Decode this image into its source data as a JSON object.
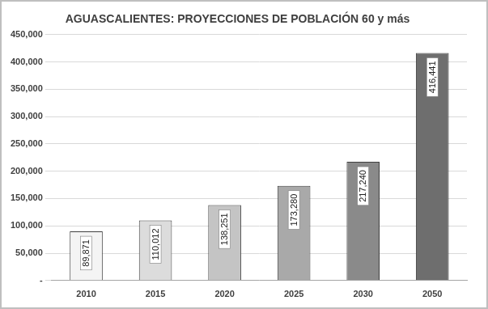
{
  "chart_data": {
    "type": "bar",
    "title": "AGUASCALIENTES: PROYECCIONES DE POBLACIÓN 60 y más",
    "categories": [
      "2010",
      "2015",
      "2020",
      "2025",
      "2030",
      "2050"
    ],
    "values": [
      89871,
      110012,
      138251,
      173280,
      217240,
      416441
    ],
    "value_labels": [
      "89,871",
      "110,012",
      "138,251",
      "173,280",
      "217,240",
      "416,441"
    ],
    "colors": [
      "#f4f4f4",
      "#dcdcdc",
      "#c4c4c4",
      "#a9a9a9",
      "#8a8a8a",
      "#6e6e6e"
    ],
    "ylim": [
      0,
      450000
    ],
    "yticks": [
      {
        "value": 0,
        "label": "-"
      },
      {
        "value": 50000,
        "label": "50,000"
      },
      {
        "value": 100000,
        "label": "100,000"
      },
      {
        "value": 150000,
        "label": "150,000"
      },
      {
        "value": 200000,
        "label": "200,000"
      },
      {
        "value": 250000,
        "label": "250,000"
      },
      {
        "value": 300000,
        "label": "300,000"
      },
      {
        "value": 350000,
        "label": "350,000"
      },
      {
        "value": 400000,
        "label": "400,000"
      },
      {
        "value": 450000,
        "label": "450,000"
      }
    ],
    "grid": true,
    "data_labels": true
  }
}
